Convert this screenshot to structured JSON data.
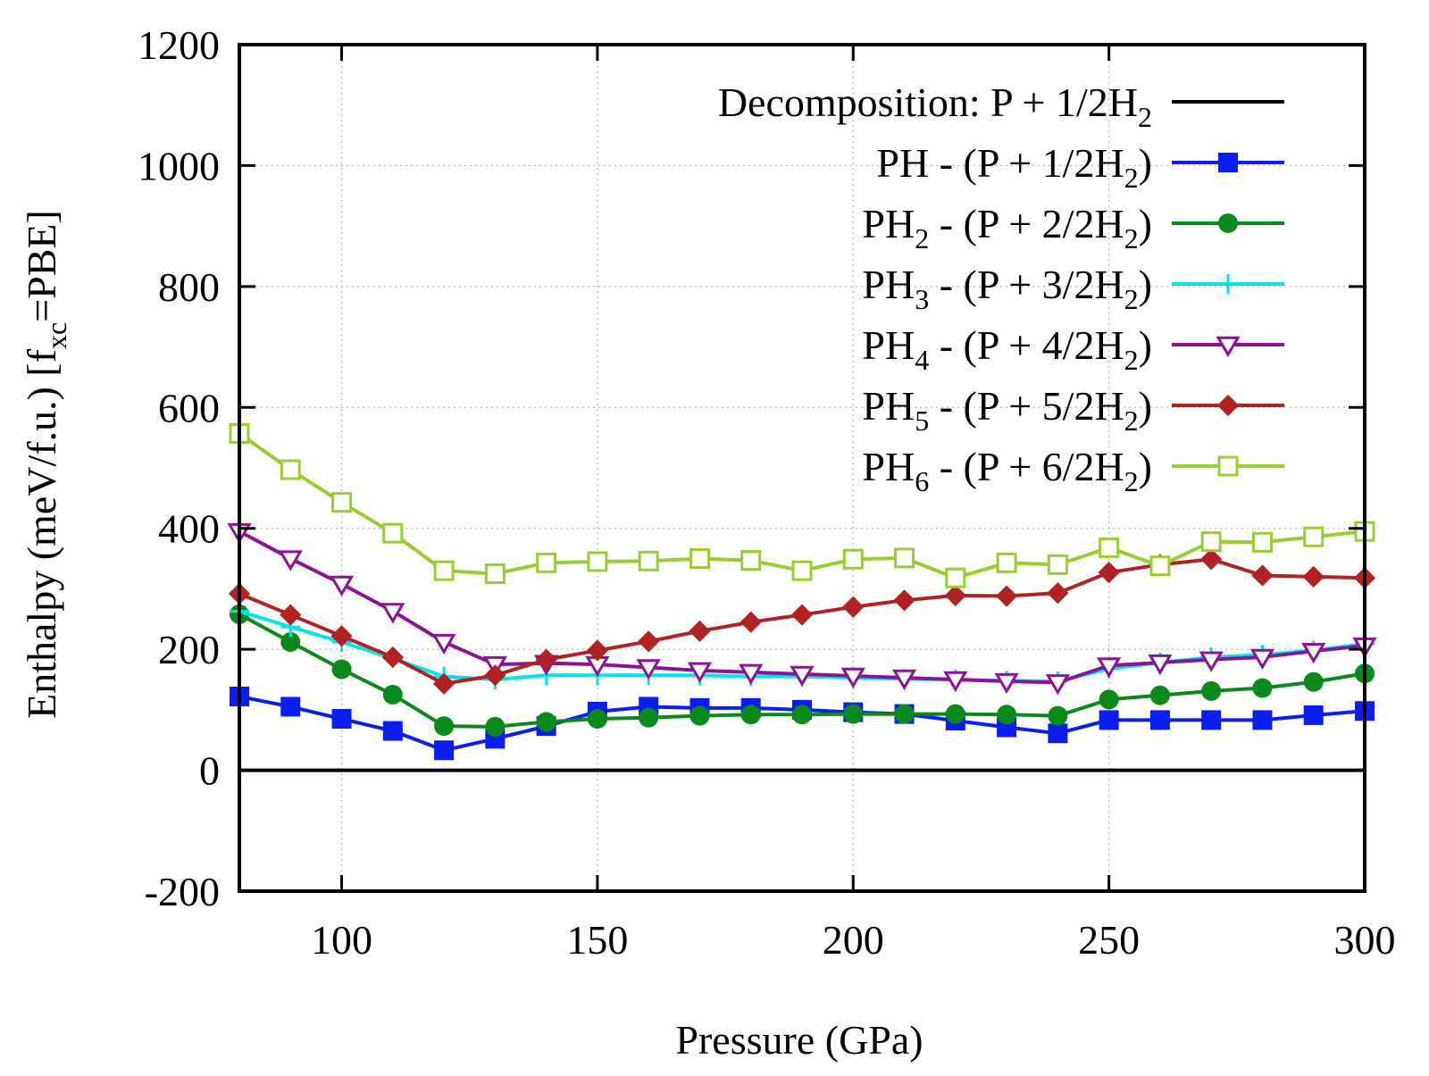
{
  "chart_data": {
    "type": "line",
    "title": "",
    "xlabel": "Pressure (GPa)",
    "ylabel": {
      "main": "Enthalpy (meV/f.u.) [f",
      "sub": "xc",
      "rest": "=PBE]"
    },
    "xlim": [
      80,
      300
    ],
    "ylim": [
      -200,
      1200
    ],
    "x_ticks": [
      100,
      150,
      200,
      250,
      300
    ],
    "y_ticks": [
      -200,
      0,
      200,
      400,
      600,
      800,
      1000,
      1200
    ],
    "grid": true,
    "legend_position": "top-right",
    "x": [
      80,
      90,
      100,
      110,
      120,
      130,
      140,
      150,
      160,
      170,
      180,
      190,
      200,
      210,
      220,
      230,
      240,
      250,
      260,
      270,
      280,
      290,
      300
    ],
    "series": [
      {
        "name": "Decomposition: P + 1/2H2",
        "label": {
          "pre": "Decomposition: P + 1/2H",
          "sub": "2",
          "post": ""
        },
        "color": "#000000",
        "marker": "none",
        "values": [
          0,
          0,
          0,
          0,
          0,
          0,
          0,
          0,
          0,
          0,
          0,
          0,
          0,
          0,
          0,
          0,
          0,
          0,
          0,
          0,
          0,
          0,
          0
        ]
      },
      {
        "name": "PH - (P + 1/2H2)",
        "label": {
          "pre": "PH   - (P + 1/2H",
          "sub": "2",
          "post": ")"
        },
        "color": "#0a1ef0",
        "marker": "filled-square",
        "values": [
          122,
          105,
          85,
          65,
          33,
          52,
          73,
          97,
          105,
          103,
          103,
          100,
          96,
          93,
          82,
          71,
          61,
          83,
          83,
          83,
          83,
          91,
          98
        ]
      },
      {
        "name": "PH2 - (P + 2/2H2)",
        "label": {
          "pre": "PH",
          "presub": "2",
          "mid": " - (P + 2/2H",
          "sub": "2",
          "post": ")"
        },
        "color": "#0b8a1c",
        "marker": "filled-circle",
        "values": [
          258,
          212,
          167,
          125,
          73,
          72,
          80,
          85,
          87,
          90,
          92,
          92,
          93,
          93,
          93,
          92,
          90,
          117,
          124,
          131,
          136,
          146,
          160
        ]
      },
      {
        "name": "PH3 - (P + 3/2H2)",
        "label": {
          "pre": "PH",
          "presub": "3",
          "mid": " - (P + 3/2H",
          "sub": "2",
          "post": ")"
        },
        "color": "#00e5ee",
        "marker": "plus",
        "values": [
          263,
          237,
          212,
          185,
          155,
          150,
          157,
          157,
          157,
          157,
          155,
          155,
          153,
          151,
          150,
          148,
          147,
          168,
          178,
          187,
          191,
          198,
          209
        ]
      },
      {
        "name": "PH4 - (P + 4/2H2)",
        "label": {
          "pre": "PH",
          "presub": "4",
          "mid": " - (P + 4/2H",
          "sub": "2",
          "post": ")"
        },
        "color": "#8b1496",
        "marker": "open-triangle-down",
        "values": [
          395,
          350,
          308,
          263,
          212,
          175,
          177,
          175,
          170,
          165,
          162,
          159,
          156,
          153,
          150,
          147,
          145,
          173,
          178,
          183,
          187,
          197,
          206
        ]
      },
      {
        "name": "PH5 - (P + 5/2H2)",
        "label": {
          "pre": "PH",
          "presub": "5",
          "mid": " - (P + 5/2H",
          "sub": "2",
          "post": ")"
        },
        "color": "#b22222",
        "marker": "filled-diamond",
        "values": [
          292,
          257,
          222,
          187,
          143,
          157,
          183,
          198,
          213,
          230,
          245,
          257,
          270,
          281,
          289,
          288,
          293,
          327,
          340,
          349,
          322,
          320,
          318
        ]
      },
      {
        "name": "PH6 - (P + 6/2H2)",
        "label": {
          "pre": "PH",
          "presub": "6",
          "mid": " - (P + 6/2H",
          "sub": "2",
          "post": ")"
        },
        "color": "#9acd32",
        "marker": "open-square",
        "values": [
          557,
          497,
          443,
          392,
          330,
          325,
          343,
          345,
          346,
          350,
          347,
          330,
          349,
          351,
          318,
          343,
          340,
          368,
          338,
          378,
          377,
          386,
          395
        ]
      }
    ]
  }
}
